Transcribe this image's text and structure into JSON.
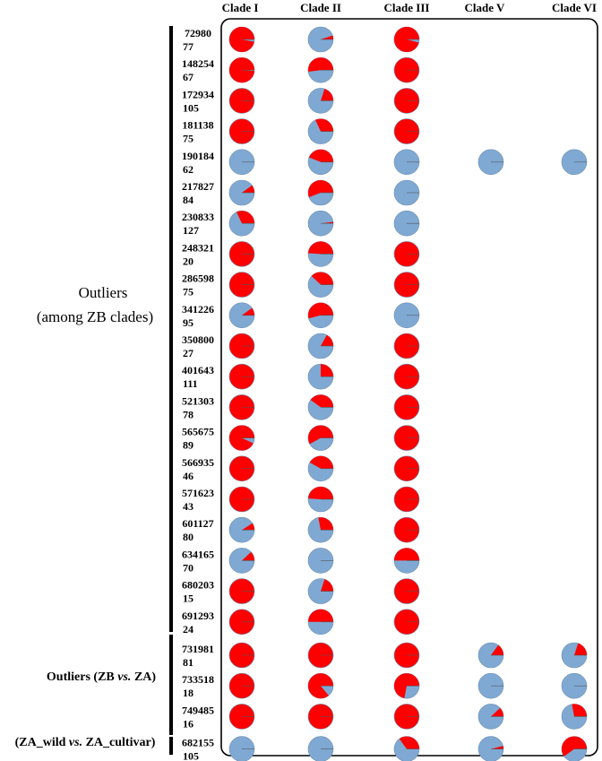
{
  "clades": [
    "Clade I",
    "Clade II",
    "Clade III",
    "Clade V",
    "Clade VI"
  ],
  "groups": {
    "among_zb_line1": "Outliers",
    "among_zb_line2": "(among ZB clades)",
    "zb_vs_za": {
      "pre": "Outliers (ZB ",
      "it": "vs.",
      "post": " ZA)"
    },
    "za_wild_vs_cultivar": {
      "pre": "(ZA_wild ",
      "it": "vs.",
      "post": " ZA_cultivar)"
    }
  },
  "colors": {
    "allele_a": "#ff0000",
    "allele_b": "#7fa9d3",
    "frame": "#000000"
  },
  "pie_meaning": "each pie = fraction of red allele in clade",
  "outliers": [
    {
      "id": "72980",
      "n": "77",
      "red": [
        0.97,
        0.05,
        0.96,
        null,
        null
      ]
    },
    {
      "id": "148254",
      "n": "67",
      "red": [
        0.99,
        0.52,
        1.0,
        null,
        null
      ]
    },
    {
      "id": "172934",
      "n": "105",
      "red": [
        1.0,
        0.2,
        1.0,
        null,
        null
      ]
    },
    {
      "id": "181138",
      "n": "75",
      "red": [
        1.0,
        0.32,
        1.0,
        null,
        null
      ]
    },
    {
      "id": "190184",
      "n": "62",
      "red": [
        0.0,
        0.44,
        0.0,
        0.0,
        0.0
      ]
    },
    {
      "id": "217827",
      "n": "84",
      "red": [
        0.1,
        0.56,
        0.0,
        null,
        null
      ]
    },
    {
      "id": "230833",
      "n": "127",
      "red": [
        0.32,
        0.02,
        0.0,
        null,
        null
      ]
    },
    {
      "id": "248321",
      "n": "20",
      "red": [
        1.0,
        0.49,
        1.0,
        null,
        null
      ]
    },
    {
      "id": "286598",
      "n": "75",
      "red": [
        1.0,
        0.38,
        1.0,
        null,
        null
      ]
    },
    {
      "id": "341226",
      "n": "95",
      "red": [
        0.1,
        0.54,
        0.0,
        null,
        null
      ]
    },
    {
      "id": "350800",
      "n": "27",
      "red": [
        1.0,
        0.17,
        1.0,
        null,
        null
      ]
    },
    {
      "id": "401643",
      "n": "111",
      "red": [
        1.0,
        0.25,
        1.0,
        null,
        null
      ]
    },
    {
      "id": "521303",
      "n": "78",
      "red": [
        1.0,
        0.4,
        1.0,
        null,
        null
      ]
    },
    {
      "id": "565675",
      "n": "89",
      "red": [
        0.93,
        0.58,
        1.0,
        null,
        null
      ]
    },
    {
      "id": "566935",
      "n": "46",
      "red": [
        1.0,
        0.42,
        1.0,
        null,
        null
      ]
    },
    {
      "id": "571623",
      "n": "43",
      "red": [
        1.0,
        0.49,
        1.0,
        null,
        null
      ]
    },
    {
      "id": "601127",
      "n": "80",
      "red": [
        0.09,
        0.28,
        1.0,
        null,
        null
      ]
    },
    {
      "id": "634165",
      "n": "70",
      "red": [
        0.12,
        0.0,
        0.5,
        null,
        null
      ]
    },
    {
      "id": "680203",
      "n": "15",
      "red": [
        1.0,
        0.2,
        1.0,
        null,
        null
      ]
    },
    {
      "id": "691293",
      "n": "24",
      "red": [
        1.0,
        0.5,
        1.0,
        null,
        null
      ]
    },
    {
      "id": "731981",
      "n": "81",
      "red": [
        1.0,
        1.0,
        1.0,
        0.15,
        0.2
      ]
    },
    {
      "id": "733518",
      "n": "18",
      "red": [
        1.0,
        0.86,
        0.72,
        0.0,
        0.0
      ]
    },
    {
      "id": "749485",
      "n": "16",
      "red": [
        1.0,
        1.0,
        1.0,
        0.12,
        0.28
      ]
    },
    {
      "id": "682155",
      "n": "105",
      "red": [
        0.0,
        0.0,
        0.35,
        0.04,
        0.6
      ]
    }
  ]
}
